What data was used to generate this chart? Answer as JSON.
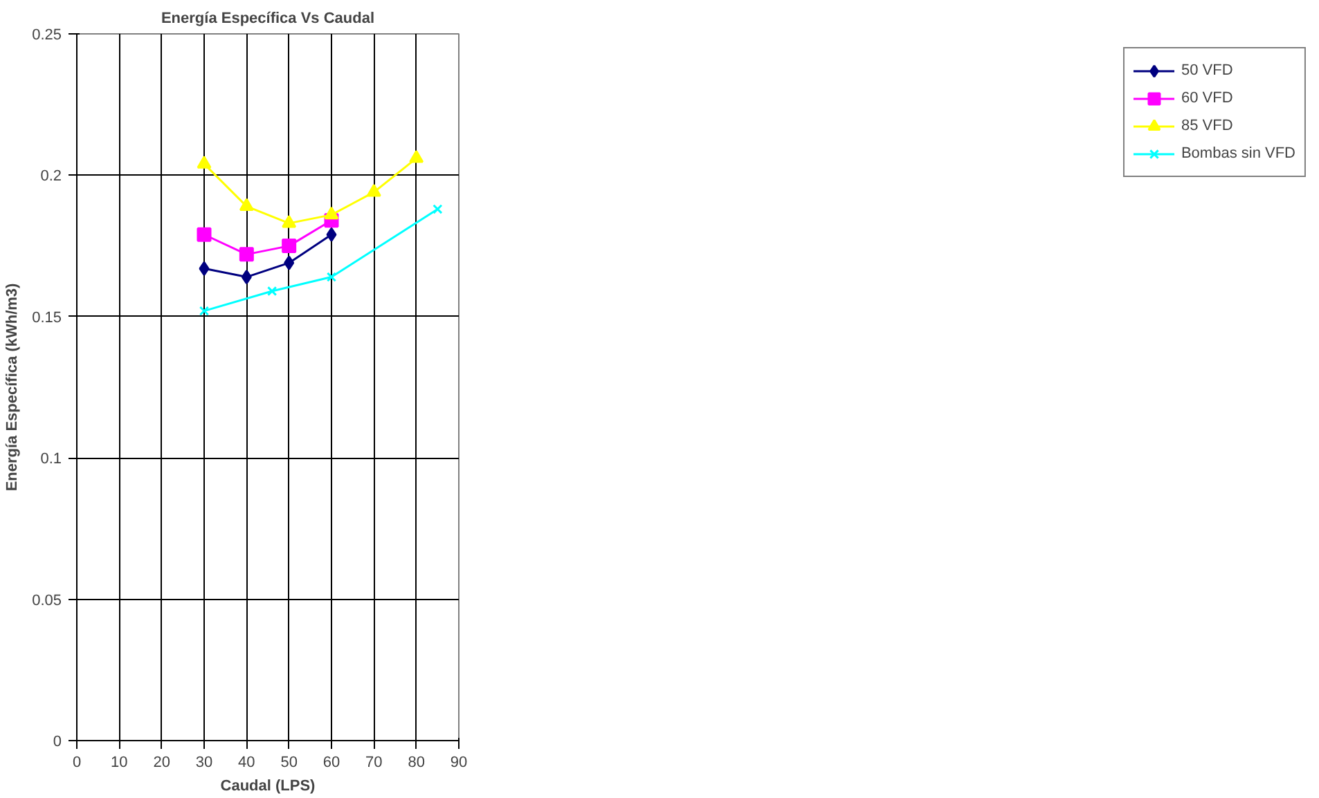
{
  "chart_data": {
    "type": "line",
    "title": "Energía Específica Vs Caudal",
    "xlabel": "Caudal (LPS)",
    "ylabel": "Energía Específica (kWh/m3)",
    "xlim": [
      0,
      90
    ],
    "xticks": [
      0,
      10,
      20,
      30,
      40,
      50,
      60,
      70,
      80,
      90
    ],
    "ylim": [
      0,
      0.25
    ],
    "yticks": [
      0,
      0.05,
      0.1,
      0.15,
      0.2,
      0.25
    ],
    "grid": true,
    "legend": "right",
    "series": [
      {
        "name": "50 VFD",
        "color": "#000080",
        "marker": "diamond",
        "x": [
          30,
          40,
          50,
          60
        ],
        "values": [
          0.167,
          0.164,
          0.169,
          0.179
        ]
      },
      {
        "name": "60 VFD",
        "color": "#ff00ff",
        "marker": "square",
        "x": [
          30,
          40,
          50,
          60
        ],
        "values": [
          0.179,
          0.172,
          0.175,
          0.184
        ]
      },
      {
        "name": "85 VFD",
        "color": "#ffff00",
        "marker": "triangle",
        "x": [
          30,
          40,
          50,
          60,
          70,
          80
        ],
        "values": [
          0.204,
          0.189,
          0.183,
          0.186,
          0.194,
          0.206
        ]
      },
      {
        "name": "Bombas sin VFD",
        "color": "#00ffff",
        "marker": "cross",
        "x": [
          30,
          46,
          60,
          85
        ],
        "values": [
          0.152,
          0.159,
          0.164,
          0.188
        ]
      }
    ]
  }
}
